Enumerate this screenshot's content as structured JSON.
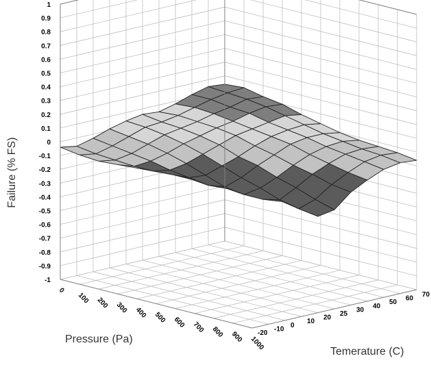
{
  "chart_data": {
    "type": "surface3d",
    "zlabel": "Failure (% FS)",
    "xlabel": "Pressure (Pa)",
    "ylabel": "Temerature (C)",
    "zlim": [
      -1,
      1
    ],
    "z_ticks": [
      "1",
      "0.9",
      "0.8",
      "0.7",
      "0.6",
      "0.5",
      "0.4",
      "0.3",
      "0.2",
      "0.1",
      "0",
      "-0.1",
      "-0.2",
      "-0.3",
      "-0.4",
      "-0.5",
      "-0.6",
      "-0.7",
      "-0.8",
      "-0.9",
      "-1"
    ],
    "x_ticks": [
      "0",
      "100",
      "200",
      "300",
      "400",
      "500",
      "600",
      "700",
      "800",
      "900",
      "1000"
    ],
    "y_ticks": [
      "-20",
      "-10",
      "0",
      "10",
      "20",
      "25",
      "30",
      "40",
      "50",
      "60",
      "70"
    ],
    "grid": true,
    "surface": [
      [
        -0.04,
        -0.06,
        -0.03,
        0.01,
        0.04,
        0.06,
        0.05,
        0.08,
        0.12,
        0.15,
        0.14
      ],
      [
        -0.06,
        -0.08,
        -0.05,
        -0.01,
        0.03,
        0.04,
        0.06,
        0.09,
        0.12,
        0.14,
        0.15
      ],
      [
        -0.07,
        -0.09,
        -0.07,
        -0.03,
        0.01,
        0.03,
        0.05,
        0.08,
        0.1,
        0.13,
        0.12
      ],
      [
        -0.06,
        -0.1,
        -0.09,
        -0.06,
        -0.02,
        0.01,
        0.04,
        0.06,
        0.09,
        0.11,
        0.1
      ],
      [
        -0.05,
        -0.1,
        -0.12,
        -0.1,
        -0.06,
        -0.02,
        0.02,
        0.04,
        0.06,
        0.08,
        0.06
      ],
      [
        -0.04,
        -0.09,
        -0.14,
        -0.15,
        -0.11,
        -0.07,
        -0.02,
        0.02,
        0.04,
        0.05,
        0.03
      ],
      [
        -0.03,
        -0.09,
        -0.16,
        -0.2,
        -0.16,
        -0.1,
        -0.05,
        0.0,
        0.02,
        0.02,
        0.0
      ],
      [
        -0.02,
        -0.08,
        -0.15,
        -0.22,
        -0.2,
        -0.15,
        -0.09,
        -0.04,
        -0.01,
        0.0,
        -0.02
      ],
      [
        -0.02,
        -0.07,
        -0.14,
        -0.22,
        -0.25,
        -0.19,
        -0.12,
        -0.07,
        -0.03,
        -0.02,
        -0.03
      ],
      [
        -0.03,
        -0.06,
        -0.12,
        -0.2,
        -0.28,
        -0.24,
        -0.16,
        -0.1,
        -0.05,
        -0.03,
        -0.04
      ],
      [
        -0.04,
        -0.06,
        -0.11,
        -0.18,
        -0.3,
        -0.28,
        -0.18,
        -0.12,
        -0.07,
        -0.05,
        -0.06
      ]
    ]
  }
}
